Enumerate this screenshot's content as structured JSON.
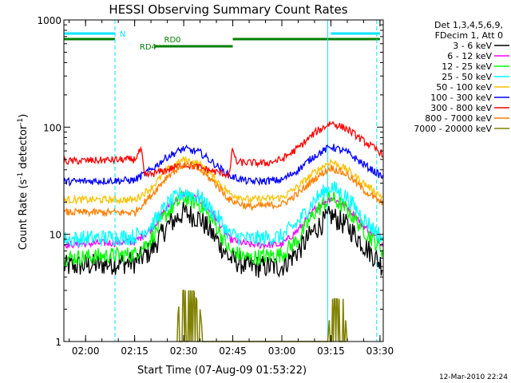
{
  "chart_data": {
    "type": "line",
    "title": "HESSI Observing Summary Count Rates",
    "xlabel": "Start Time (07-Aug-09 01:53:22)",
    "ylabel_prefix": "Count Rate (s",
    "ylabel_exp1": "-1",
    "ylabel_mid": " detector",
    "ylabel_exp2": "-1",
    "ylabel_suffix": ")",
    "y_scale": "log",
    "ylim": [
      1,
      1000
    ],
    "xlim": [
      "01:53:22",
      "03:31:00"
    ],
    "x_ticks": [
      "02:00",
      "02:15",
      "02:30",
      "02:45",
      "03:00",
      "03:15",
      "03:30"
    ],
    "y_ticks": [
      "1",
      "10",
      "100",
      "1000"
    ],
    "legend_header": [
      "Det 1,3,4,5,6,9,",
      "FDecim 1, Att 0"
    ],
    "legend_position": "right",
    "footer": "12-Mar-2010 22:24",
    "series": [
      {
        "name": "3 - 6 keV",
        "color": "#000000",
        "points": [
          [
            "01:53:22",
            5
          ],
          [
            "02:15",
            5.5
          ],
          [
            "02:20",
            7
          ],
          [
            "02:25",
            12
          ],
          [
            "02:30",
            16
          ],
          [
            "02:35",
            14
          ],
          [
            "02:40",
            9
          ],
          [
            "02:44",
            6
          ],
          [
            "02:50",
            5
          ],
          [
            "03:00",
            5
          ],
          [
            "03:05",
            7
          ],
          [
            "03:10",
            11
          ],
          [
            "03:15",
            15
          ],
          [
            "03:20",
            12
          ],
          [
            "03:25",
            8
          ],
          [
            "03:31:00",
            5
          ]
        ]
      },
      {
        "name": "6 - 12 keV",
        "color": "#ff00ff",
        "points": [
          [
            "01:53:22",
            8
          ],
          [
            "02:15",
            8.5
          ],
          [
            "02:20",
            11
          ],
          [
            "02:25",
            18
          ],
          [
            "02:30",
            24
          ],
          [
            "02:35",
            21
          ],
          [
            "02:40",
            14
          ],
          [
            "02:44",
            9
          ],
          [
            "02:50",
            8
          ],
          [
            "03:00",
            8
          ],
          [
            "03:05",
            11
          ],
          [
            "03:10",
            17
          ],
          [
            "03:15",
            22
          ],
          [
            "03:20",
            18
          ],
          [
            "03:25",
            12
          ],
          [
            "03:31:00",
            8
          ]
        ]
      },
      {
        "name": "12 - 25 keV",
        "color": "#00ff00",
        "points": [
          [
            "01:53:22",
            6
          ],
          [
            "02:15",
            6.5
          ],
          [
            "02:20",
            9
          ],
          [
            "02:25",
            16
          ],
          [
            "02:30",
            22
          ],
          [
            "02:35",
            19
          ],
          [
            "02:40",
            12
          ],
          [
            "02:44",
            7
          ],
          [
            "02:50",
            6
          ],
          [
            "03:00",
            6.5
          ],
          [
            "03:05",
            9
          ],
          [
            "03:10",
            16
          ],
          [
            "03:15",
            22
          ],
          [
            "03:20",
            17
          ],
          [
            "03:25",
            11
          ],
          [
            "03:31:00",
            7
          ]
        ]
      },
      {
        "name": "25 - 50 keV",
        "color": "#00ffff",
        "points": [
          [
            "01:53:22",
            9
          ],
          [
            "02:15",
            9.5
          ],
          [
            "02:20",
            12
          ],
          [
            "02:25",
            19
          ],
          [
            "02:30",
            25
          ],
          [
            "02:35",
            22
          ],
          [
            "02:40",
            15
          ],
          [
            "02:44",
            10
          ],
          [
            "02:50",
            9
          ],
          [
            "03:00",
            9.5
          ],
          [
            "03:05",
            13
          ],
          [
            "03:10",
            21
          ],
          [
            "03:15",
            28
          ],
          [
            "03:20",
            22
          ],
          [
            "03:25",
            14
          ],
          [
            "03:31:00",
            9
          ]
        ]
      },
      {
        "name": "50 - 100 keV",
        "color": "#ffc000",
        "points": [
          [
            "01:53:22",
            21
          ],
          [
            "02:15",
            21
          ],
          [
            "02:20",
            27
          ],
          [
            "02:25",
            40
          ],
          [
            "02:30",
            50
          ],
          [
            "02:35",
            45
          ],
          [
            "02:40",
            32
          ],
          [
            "02:44",
            24
          ],
          [
            "02:50",
            21
          ],
          [
            "03:00",
            22
          ],
          [
            "03:05",
            28
          ],
          [
            "03:10",
            38
          ],
          [
            "03:15",
            48
          ],
          [
            "03:20",
            40
          ],
          [
            "03:25",
            30
          ],
          [
            "03:31:00",
            22
          ]
        ]
      },
      {
        "name": "100 - 300 keV",
        "color": "#0000ff",
        "points": [
          [
            "01:53:22",
            31
          ],
          [
            "02:15",
            32
          ],
          [
            "02:20",
            40
          ],
          [
            "02:25",
            53
          ],
          [
            "02:30",
            63
          ],
          [
            "02:35",
            58
          ],
          [
            "02:40",
            44
          ],
          [
            "02:44",
            35
          ],
          [
            "02:50",
            31
          ],
          [
            "03:00",
            32
          ],
          [
            "03:05",
            40
          ],
          [
            "03:10",
            54
          ],
          [
            "03:15",
            66
          ],
          [
            "03:20",
            58
          ],
          [
            "03:25",
            45
          ],
          [
            "03:31:00",
            34
          ]
        ]
      },
      {
        "name": "300 - 800 keV",
        "color": "#ff0000",
        "points": [
          [
            "01:53:22",
            48
          ],
          [
            "02:15",
            50
          ],
          [
            "02:17",
            62
          ],
          [
            "02:18",
            35
          ],
          [
            "02:25",
            40
          ],
          [
            "02:30",
            45
          ],
          [
            "02:35",
            42
          ],
          [
            "02:40",
            38
          ],
          [
            "02:44",
            36
          ],
          [
            "02:45",
            65
          ],
          [
            "02:46",
            47
          ],
          [
            "02:55",
            46
          ],
          [
            "03:00",
            50
          ],
          [
            "03:05",
            64
          ],
          [
            "03:10",
            88
          ],
          [
            "03:15",
            110
          ],
          [
            "03:20",
            96
          ],
          [
            "03:25",
            74
          ],
          [
            "03:31:00",
            56
          ]
        ]
      },
      {
        "name": "800 - 7000 keV",
        "color": "#ff7f00",
        "points": [
          [
            "01:53:22",
            16
          ],
          [
            "02:15",
            16
          ],
          [
            "02:20",
            23
          ],
          [
            "02:25",
            35
          ],
          [
            "02:30",
            45
          ],
          [
            "02:35",
            40
          ],
          [
            "02:40",
            29
          ],
          [
            "02:44",
            21
          ],
          [
            "02:50",
            18
          ],
          [
            "03:00",
            19
          ],
          [
            "03:05",
            24
          ],
          [
            "03:10",
            33
          ],
          [
            "03:15",
            42
          ],
          [
            "03:20",
            36
          ],
          [
            "03:25",
            26
          ],
          [
            "03:31:00",
            19
          ]
        ]
      },
      {
        "name": "7000 - 20000 keV",
        "color": "#808000",
        "points": [
          [
            "02:28",
            1.5
          ],
          [
            "02:29",
            3
          ],
          [
            "02:33",
            3
          ],
          [
            "02:35",
            2
          ],
          [
            "02:36",
            1
          ],
          [
            "03:14",
            1
          ],
          [
            "03:15",
            2.5
          ],
          [
            "03:19",
            2.5
          ],
          [
            "03:20",
            1
          ]
        ]
      }
    ],
    "attenuator_bars": [
      {
        "label": "N",
        "color": "#00e5ff",
        "ranges": [
          [
            "01:53:22",
            "02:09"
          ],
          [
            "03:15",
            "03:30"
          ]
        ]
      },
      {
        "label": "RD0",
        "color": "#007f00",
        "ranges": [
          [
            "01:53:22",
            "02:09"
          ],
          [
            "02:45",
            "03:30"
          ]
        ]
      },
      {
        "label": "RD4",
        "color": "#007f00",
        "ranges": [
          [
            "02:21",
            "02:45"
          ]
        ]
      }
    ],
    "markers": [
      {
        "time": "01:53:22",
        "style": "solid",
        "color": "#00e5ff"
      },
      {
        "time": "02:09",
        "style": "dashed",
        "color": "#00e5ff"
      },
      {
        "time": "03:14",
        "style": "solid",
        "color": "#00e5ff"
      },
      {
        "time": "03:29",
        "style": "dashed",
        "color": "#00e5ff"
      }
    ],
    "grid": false
  }
}
